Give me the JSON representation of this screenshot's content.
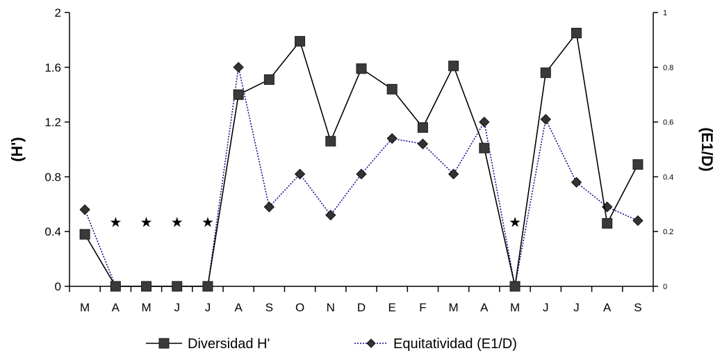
{
  "chart_data": {
    "type": "line",
    "categories": [
      "M",
      "A",
      "M",
      "J",
      "J",
      "A",
      "S",
      "O",
      "N",
      "D",
      "E",
      "F",
      "M",
      "A",
      "M",
      "J",
      "J",
      "A",
      "S"
    ],
    "series": [
      {
        "name": "Diversidad H'",
        "axis": "left",
        "marker": "square",
        "line": "solid",
        "color": "#000000",
        "values": [
          0.38,
          0.0,
          0.0,
          0.0,
          0.0,
          1.4,
          1.51,
          1.79,
          1.06,
          1.59,
          1.44,
          1.16,
          1.61,
          1.01,
          0.0,
          1.56,
          1.85,
          0.46,
          0.89
        ]
      },
      {
        "name": "Equitatividad (E1/D)",
        "axis": "right",
        "marker": "diamond",
        "line": "dotted",
        "color": "#00008b",
        "values": [
          0.28,
          0.0,
          0.0,
          0.0,
          0.0,
          0.8,
          0.29,
          0.41,
          0.26,
          0.41,
          0.54,
          0.52,
          0.41,
          0.6,
          0.0,
          0.61,
          0.38,
          0.29,
          0.24
        ]
      }
    ],
    "left_axis": {
      "label": "(H')",
      "ylim": [
        0,
        2
      ],
      "ticks": [
        "0",
        "0.4",
        "0.8",
        "1.2",
        "1.6",
        "2"
      ]
    },
    "right_axis": {
      "label": "(E1/D)",
      "ylim": [
        0,
        1
      ],
      "ticks": [
        "0",
        "0.2",
        "0.4",
        "0.6",
        "0.8",
        "1"
      ]
    },
    "annotations": [
      {
        "text": "★",
        "category_index": 1,
        "y_left": 0.47
      },
      {
        "text": "★",
        "category_index": 2,
        "y_left": 0.47
      },
      {
        "text": "★",
        "category_index": 3,
        "y_left": 0.47
      },
      {
        "text": "★",
        "category_index": 4,
        "y_left": 0.47
      },
      {
        "text": "★",
        "category_index": 14,
        "y_left": 0.47
      }
    ],
    "legend": {
      "position": "bottom",
      "items": [
        "Diversidad H'",
        "Equitatividad (E1/D)"
      ]
    },
    "grid": false
  }
}
